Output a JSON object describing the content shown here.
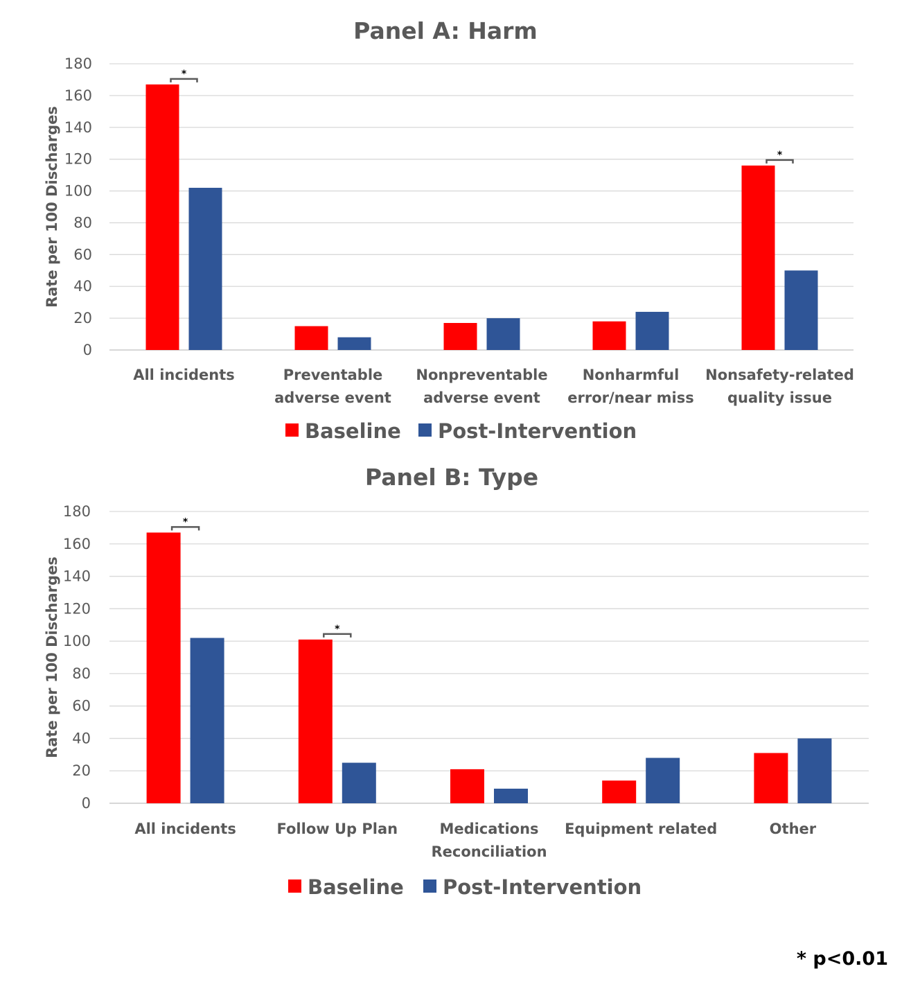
{
  "colors": {
    "baseline": "#ff0000",
    "post_intervention": "#2f5597",
    "text": "#595959",
    "grid": "#d9d9d9",
    "bracket": "#595959"
  },
  "footnote": "* p<0.01",
  "chart_data": [
    {
      "type": "bar",
      "title": "Panel A: Harm",
      "ylabel": "Rate per 100 Discharges",
      "ylim": [
        0,
        180
      ],
      "yticks": [
        0,
        20,
        40,
        60,
        80,
        100,
        120,
        140,
        160,
        180
      ],
      "grid": true,
      "legend_position": "bottom",
      "categories": [
        [
          "All incidents"
        ],
        [
          "Preventable",
          "adverse event"
        ],
        [
          "Nonpreventable",
          "adverse event"
        ],
        [
          "Nonharmful",
          "error/near miss"
        ],
        [
          "Nonsafety-related",
          "quality issue"
        ]
      ],
      "series": [
        {
          "name": "Baseline",
          "color_key": "baseline",
          "values": [
            167,
            15,
            17,
            18,
            116
          ]
        },
        {
          "name": "Post-Intervention",
          "color_key": "post_intervention",
          "values": [
            102,
            8,
            20,
            24,
            50
          ]
        }
      ],
      "significance": [
        {
          "category_index": 0,
          "label": "*"
        },
        {
          "category_index": 4,
          "label": "*"
        }
      ]
    },
    {
      "type": "bar",
      "title": "Panel B: Type",
      "ylabel": "Rate per 100 Discharges",
      "ylim": [
        0,
        180
      ],
      "yticks": [
        0,
        20,
        40,
        60,
        80,
        100,
        120,
        140,
        160,
        180
      ],
      "grid": true,
      "legend_position": "bottom",
      "categories": [
        [
          "All incidents"
        ],
        [
          "Follow Up Plan"
        ],
        [
          "Medications",
          "Reconciliation"
        ],
        [
          "Equipment related"
        ],
        [
          "Other"
        ]
      ],
      "series": [
        {
          "name": "Baseline",
          "color_key": "baseline",
          "values": [
            167,
            101,
            21,
            14,
            31
          ]
        },
        {
          "name": "Post-Intervention",
          "color_key": "post_intervention",
          "values": [
            102,
            25,
            9,
            28,
            40
          ]
        }
      ],
      "significance": [
        {
          "category_index": 0,
          "label": "*"
        },
        {
          "category_index": 1,
          "label": "*"
        }
      ]
    }
  ]
}
